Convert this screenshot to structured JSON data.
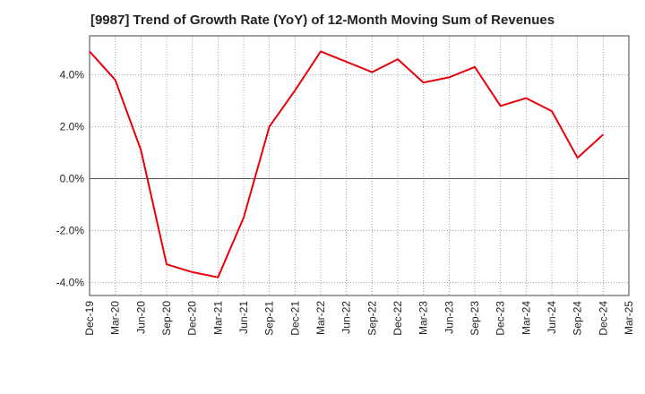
{
  "chart_data": {
    "type": "line",
    "title": "[9987]  Trend of Growth Rate (YoY) of 12-Month Moving Sum of Revenues",
    "xlabel": "",
    "ylabel": "",
    "x_tick_labels": [
      "Dec-19",
      "Mar-20",
      "Jun-20",
      "Sep-20",
      "Dec-20",
      "Mar-21",
      "Jun-21",
      "Sep-21",
      "Dec-21",
      "Mar-22",
      "Jun-22",
      "Sep-22",
      "Dec-22",
      "Mar-23",
      "Jun-23",
      "Sep-23",
      "Dec-23",
      "Mar-24",
      "Jun-24",
      "Sep-24",
      "Dec-24",
      "Mar-25"
    ],
    "y_tick_values": [
      -4.0,
      -2.0,
      0.0,
      2.0,
      4.0
    ],
    "y_tick_labels": [
      "-4.0%",
      "-2.0%",
      "0.0%",
      "2.0%",
      "4.0%"
    ],
    "ylim": [
      -4.5,
      5.5
    ],
    "grid": true,
    "line_color": "#e8000b",
    "series": [
      {
        "x": [
          "Dec-19",
          "Mar-20",
          "Jun-20",
          "Sep-20",
          "Dec-20",
          "Mar-21",
          "Jun-21",
          "Sep-21",
          "Dec-21",
          "Mar-22",
          "Jun-22",
          "Sep-22",
          "Dec-22",
          "Mar-23",
          "Jun-23",
          "Sep-23",
          "Dec-23",
          "Mar-24",
          "Jun-24",
          "Sep-24",
          "Dec-24"
        ],
        "values": [
          4.9,
          3.8,
          1.1,
          -3.3,
          -3.6,
          -3.8,
          -1.5,
          2.0,
          3.4,
          4.9,
          4.5,
          4.1,
          4.6,
          3.7,
          3.9,
          4.3,
          2.8,
          3.1,
          2.6,
          0.8,
          1.7
        ]
      }
    ]
  }
}
